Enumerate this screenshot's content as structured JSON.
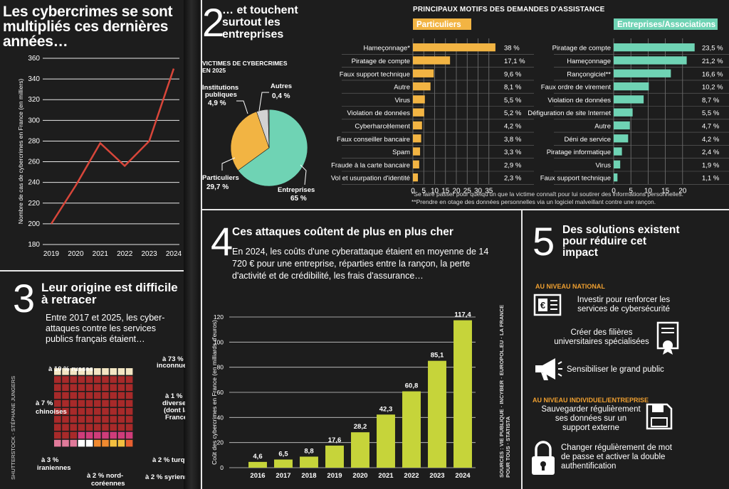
{
  "section1": {
    "title": "Les cybercrimes se sont multipliés ces dernières années…"
  },
  "section2": {
    "number": "2",
    "title": "… et touchent surtout les entreprises"
  },
  "assistance": {
    "header": "PRINCIPAUX MOTIFS DES DEMANDES D'ASSISTANCE",
    "note1": "*Se faire passer pour quelqu'un que la victime connaît pour lui soutirer des informations personnelles.",
    "note2": "**Prendre en otage des données personnelles via un logiciel malveillant contre une rançon."
  },
  "section3": {
    "number": "3",
    "title": "Leur origine est difficile à retracer",
    "text": "Entre 2017 et 2025, les cyber-attaques contre les services publics français étaient…",
    "credit": "SHUTTERSTOCK - STÉPHANE JUNGERS"
  },
  "section4": {
    "number": "4",
    "title": "Ces attaques coûtent de plus en plus cher",
    "text": "En 2024, les coûts d'une cyberattaque étaient en moyenne de 14 720 € pour une entreprise, réparties entre la rançon, la perte d'activité et de crédibilité, les frais d'assurance…",
    "sources": "SOURCES : VIE PUBLIQUE · INCYBER · EUROPOL.EU · LA FRANCE POUR TOUS · STATISTA"
  },
  "section5": {
    "number": "5",
    "title": "Des solutions existent pour réduire cet impact",
    "national_label": "AU NIVEAU NATIONAL",
    "individual_label": "AU NIVEAU INDIVIDUEL/ENTREPRISE",
    "items": [
      {
        "text": "Investir pour renforcer les services de cybersécurité",
        "icon": "euro-document-icon"
      },
      {
        "text": "Créer des filières universitaires spécialisées",
        "icon": "diploma-icon"
      },
      {
        "text": "Sensibiliser le grand public",
        "icon": "megaphone-icon"
      },
      {
        "text": "Sauvegarder régulièrement ses données sur un support externe",
        "icon": "floppy-disk-icon"
      },
      {
        "text": "Changer régulièrement de mot de passe et activer la double authentification",
        "icon": "padlock-icon"
      }
    ]
  },
  "colors": {
    "particuliers": "#f2b443",
    "entreprises": "#6fd3b4",
    "line": "#d8463a",
    "bars2024": "#c6d43a",
    "grid_red": "#a82a2a"
  },
  "chart_data": [
    {
      "id": "cybercrimes-line",
      "type": "line",
      "title": "",
      "xlabel": "",
      "ylabel": "Nombre de cas de cybercrimes en France (en milliers)",
      "x": [
        "2019",
        "2020",
        "2021",
        "2022",
        "2023",
        "2024"
      ],
      "y": [
        200,
        237,
        278,
        256,
        280,
        350
      ],
      "ylim": [
        180,
        360
      ],
      "yticks": [
        180,
        200,
        220,
        240,
        260,
        280,
        300,
        320,
        340,
        360
      ],
      "grid": true
    },
    {
      "id": "victimes-pie",
      "type": "pie",
      "title": "VICTIMES DE CYBERCRIMES EN 2025",
      "slices": [
        {
          "label": "Entreprises",
          "value": 65,
          "display": "65 %",
          "color": "#6fd3b4"
        },
        {
          "label": "Particuliers",
          "value": 29.7,
          "display": "29,7 %",
          "color": "#f2b443"
        },
        {
          "label": "Institutions publiques",
          "value": 4.9,
          "display": "4,9 %",
          "color": "#d2d2d2"
        },
        {
          "label": "Autres",
          "value": 0.4,
          "display": "0,4 %",
          "color": "#8a8a8a"
        }
      ]
    },
    {
      "id": "particuliers-bars",
      "type": "bar",
      "orientation": "horizontal",
      "title": "Particuliers",
      "categories": [
        "Hameçonnage*",
        "Piratage de compte",
        "Faux support technique",
        "Autre",
        "Virus",
        "Violation de données",
        "Cyberharcèlement",
        "Faux conseiller bancaire",
        "Spam",
        "Fraude à la carte bancaire",
        "Vol et usurpation d'identité"
      ],
      "values": [
        38,
        17.1,
        9.6,
        8.1,
        5.5,
        5.2,
        4.2,
        3.8,
        3.3,
        2.9,
        2.3
      ],
      "labels": [
        "38 %",
        "17,1 %",
        "9,6 %",
        "8,1 %",
        "5,5 %",
        "5,2 %",
        "4,2 %",
        "3,8 %",
        "3,3 %",
        "2,9 %",
        "2,3 %"
      ],
      "xticks": [
        0,
        5,
        10,
        15,
        20,
        25,
        30,
        35
      ],
      "xlim": [
        0,
        40
      ],
      "color": "#f2b443"
    },
    {
      "id": "entreprises-bars",
      "type": "bar",
      "orientation": "horizontal",
      "title": "Entreprises/Associations",
      "categories": [
        "Piratage de compte",
        "Hameçonnage",
        "Rançongiciel**",
        "Faux ordre de virement",
        "Violation de données",
        "Défiguration de site Internet",
        "Autre",
        "Déni de service",
        "Piratage informatique",
        "Virus",
        "Faux support technique"
      ],
      "values": [
        23.5,
        21.2,
        16.6,
        10.2,
        8.7,
        5.5,
        4.7,
        4.2,
        2.4,
        1.9,
        1.1
      ],
      "labels": [
        "23,5 %",
        "21,2 %",
        "16,6 %",
        "10,2 %",
        "8,7 %",
        "5,5 %",
        "4,7 %",
        "4,2 %",
        "2,4 %",
        "1,9 %",
        "1,1 %"
      ],
      "xticks": [
        0,
        5,
        10,
        15,
        20
      ],
      "xlim": [
        0,
        25
      ],
      "color": "#6fd3b4"
    },
    {
      "id": "origine-grid",
      "type": "heatmap",
      "categories": [
        {
          "label": "à 73 % inconnues",
          "value": 73,
          "color": "#a82a2a"
        },
        {
          "label": "à 10 % russes",
          "value": 10,
          "color": "#f3e6c4"
        },
        {
          "label": "à 7 % chinoises",
          "value": 7,
          "color": "#cf3c7a"
        },
        {
          "label": "à 3 % iraniennes",
          "value": 3,
          "color": "#e07a9a"
        },
        {
          "label": "à 2 % nord-coréennes",
          "value": 2,
          "color": "#ffffff"
        },
        {
          "label": "à 2 % turques",
          "value": 2,
          "color": "#f08a30"
        },
        {
          "label": "à 2 % syriennes",
          "value": 2,
          "color": "#f4c040"
        },
        {
          "label": "à 1 % diverses (dont la France)",
          "value": 1,
          "color": "#e86030"
        }
      ]
    },
    {
      "id": "couts-bars",
      "type": "bar",
      "title": "",
      "ylabel": "Coût des cybercrimes en France (en milliards d'euros)",
      "categories": [
        "2016",
        "2017",
        "2018",
        "2019",
        "2020",
        "2021",
        "2022",
        "2023",
        "2024"
      ],
      "values": [
        4.6,
        6.5,
        8.8,
        17.6,
        28.2,
        42.3,
        60.8,
        85.1,
        117.4
      ],
      "labels": [
        "4,6",
        "6,5",
        "8,8",
        "17,6",
        "28,2",
        "42,3",
        "60,8",
        "85,1",
        "117,4"
      ],
      "ylim": [
        0,
        120
      ],
      "yticks": [
        0,
        20,
        40,
        60,
        80,
        100,
        120
      ],
      "color": "#c6d43a"
    }
  ]
}
